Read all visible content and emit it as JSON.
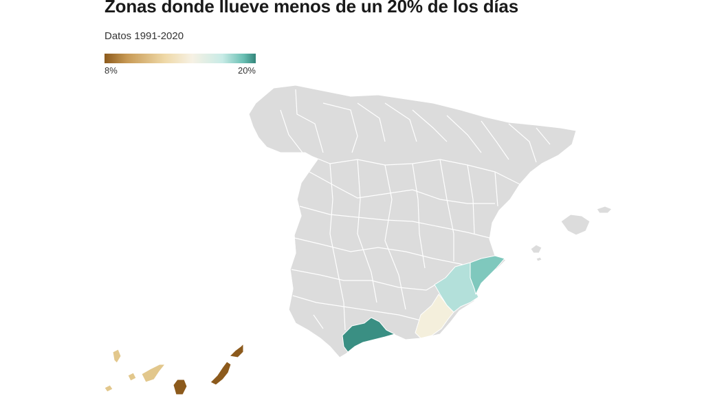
{
  "title": "Zonas donde llueve menos de un 20% de los días",
  "subtitle": "Datos 1991-2020",
  "legend": {
    "min_label": "8%",
    "max_label": "20%",
    "colors": [
      "#8c5a1c",
      "#efd9a8",
      "#f6f1e4",
      "#c8ebe6",
      "#33857a"
    ]
  },
  "map": {
    "base_color": "#dcdcdc",
    "highlighted": [
      {
        "id": "malaga",
        "color": "#3a8f83"
      },
      {
        "id": "alicante",
        "color": "#7fc8bd"
      },
      {
        "id": "murcia",
        "color": "#b3e0da"
      },
      {
        "id": "almeria",
        "color": "#f4efdc"
      },
      {
        "id": "las-palmas",
        "color": "#8c5a1c"
      },
      {
        "id": "santa-cruz-de-tenerife",
        "color": "#e2c78c"
      }
    ]
  }
}
